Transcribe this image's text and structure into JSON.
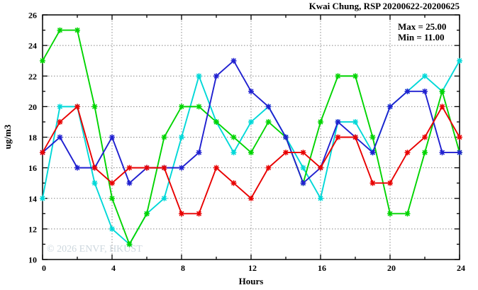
{
  "title": "Kwai Chung, RSP 20200622-20200625",
  "annotations": {
    "max": "Max = 25.00",
    "min": "Min = 11.00"
  },
  "watermark": "© 2026 ENVF, HKUST",
  "chart_data": {
    "type": "line",
    "title": "Kwai Chung, RSP 20200622-20200625",
    "xlabel": "Hours",
    "ylabel": "ug/m3",
    "xlim": [
      0,
      24
    ],
    "ylim": [
      10,
      26
    ],
    "x": [
      0,
      1,
      2,
      3,
      4,
      5,
      6,
      7,
      8,
      9,
      10,
      11,
      12,
      13,
      14,
      15,
      16,
      17,
      18,
      19,
      20,
      21,
      22,
      23,
      24
    ],
    "xticks_major": [
      0,
      4,
      8,
      12,
      16,
      20,
      24
    ],
    "xticks_minor": [
      2,
      6,
      10,
      14,
      18,
      22
    ],
    "yticks_major": [
      10,
      12,
      14,
      16,
      18,
      20,
      22,
      24,
      26
    ],
    "yticks_minor": [
      11,
      13,
      15,
      17,
      19,
      21,
      23,
      25
    ],
    "grid_x": [
      4,
      8,
      12,
      16,
      20
    ],
    "grid_y": [
      12,
      14,
      16,
      18,
      20,
      22,
      24
    ],
    "legend_position": "none",
    "grid": "dotted",
    "marker": "star",
    "series": [
      {
        "name": "series-cyan",
        "color": "#00d8d8",
        "values": [
          14,
          20,
          20,
          15,
          12,
          11,
          13,
          14,
          18,
          22,
          19,
          17,
          19,
          20,
          18,
          16,
          14,
          19,
          19,
          17,
          20,
          21,
          22,
          21,
          23
        ]
      },
      {
        "name": "series-green",
        "color": "#00d400",
        "values": [
          23,
          25,
          25,
          20,
          14,
          11,
          13,
          18,
          20,
          20,
          19,
          18,
          17,
          19,
          18,
          15,
          19,
          22,
          22,
          18,
          13,
          13,
          17,
          21,
          17
        ]
      },
      {
        "name": "series-blue",
        "color": "#2020d0",
        "values": [
          17,
          18,
          16,
          16,
          18,
          15,
          16,
          16,
          16,
          17,
          22,
          23,
          21,
          20,
          18,
          15,
          16,
          19,
          18,
          17,
          20,
          21,
          21,
          17,
          17
        ]
      },
      {
        "name": "series-red",
        "color": "#e80000",
        "values": [
          17,
          19,
          20,
          16,
          15,
          16,
          16,
          16,
          13,
          13,
          16,
          15,
          14,
          16,
          17,
          17,
          16,
          18,
          18,
          15,
          15,
          17,
          18,
          20,
          18
        ]
      }
    ]
  }
}
